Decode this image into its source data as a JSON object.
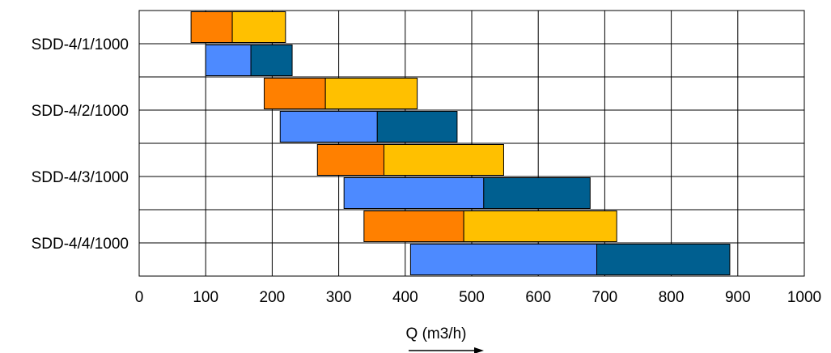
{
  "chart_data": {
    "type": "bar",
    "orientation": "horizontal",
    "stacked": true,
    "xlabel": "Q (m3/h)",
    "xlim": [
      0,
      1000
    ],
    "x_ticks": [
      0,
      100,
      200,
      300,
      400,
      500,
      600,
      700,
      800,
      900,
      1000
    ],
    "grid": true,
    "legend": "none",
    "categories": [
      "SDD-4/1/1000",
      "SDD-4/2/1000",
      "SDD-4/3/1000",
      "SDD-4/4/1000"
    ],
    "rows": [
      {
        "category": "SDD-4/1/1000",
        "segments": [
          {
            "start": 78,
            "end": 140,
            "color": "#FF8000"
          },
          {
            "start": 140,
            "end": 220,
            "color": "#FFC000"
          }
        ]
      },
      {
        "category": "SDD-4/1/1000",
        "segments": [
          {
            "start": 100,
            "end": 168,
            "color": "#4D8AFF"
          },
          {
            "start": 168,
            "end": 230,
            "color": "#005F90"
          }
        ]
      },
      {
        "category": "SDD-4/2/1000",
        "segments": [
          {
            "start": 188,
            "end": 280,
            "color": "#FF8000"
          },
          {
            "start": 280,
            "end": 418,
            "color": "#FFC000"
          }
        ]
      },
      {
        "category": "SDD-4/2/1000",
        "segments": [
          {
            "start": 212,
            "end": 358,
            "color": "#4D8AFF"
          },
          {
            "start": 358,
            "end": 478,
            "color": "#005F90"
          }
        ]
      },
      {
        "category": "SDD-4/3/1000",
        "segments": [
          {
            "start": 268,
            "end": 368,
            "color": "#FF8000"
          },
          {
            "start": 368,
            "end": 548,
            "color": "#FFC000"
          }
        ]
      },
      {
        "category": "SDD-4/3/1000",
        "segments": [
          {
            "start": 308,
            "end": 518,
            "color": "#4D8AFF"
          },
          {
            "start": 518,
            "end": 678,
            "color": "#005F90"
          }
        ]
      },
      {
        "category": "SDD-4/4/1000",
        "segments": [
          {
            "start": 338,
            "end": 488,
            "color": "#FF8000"
          },
          {
            "start": 488,
            "end": 718,
            "color": "#FFC000"
          }
        ]
      },
      {
        "category": "SDD-4/4/1000",
        "segments": [
          {
            "start": 408,
            "end": 688,
            "color": "#4D8AFF"
          },
          {
            "start": 688,
            "end": 888,
            "color": "#005F90"
          }
        ]
      }
    ]
  }
}
